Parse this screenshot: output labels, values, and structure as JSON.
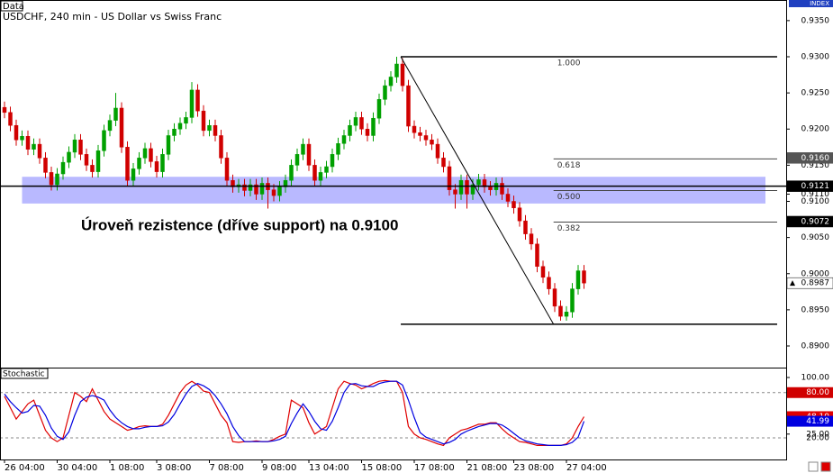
{
  "chart_data": [
    {
      "type": "candlestick",
      "tag": "Data",
      "title": "USDCHF, 240 min - US Dollar vs Swiss Franc",
      "index_label": "INDEX",
      "up_color": "#00a000",
      "down_color": "#d00000",
      "open": [
        0.923,
        0.9223,
        0.9205,
        0.9185,
        0.919,
        0.9172,
        0.9179,
        0.916,
        0.914,
        0.9123,
        0.9138,
        0.9154,
        0.9168,
        0.9185,
        0.9165,
        0.915,
        0.9141,
        0.917,
        0.9198,
        0.9212,
        0.9229,
        0.9175,
        0.9129,
        0.9145,
        0.916,
        0.9173,
        0.9155,
        0.9141,
        0.9165,
        0.9191,
        0.92,
        0.9208,
        0.9216,
        0.9254,
        0.9225,
        0.9198,
        0.9205,
        0.9191,
        0.916,
        0.9129,
        0.912,
        0.9123,
        0.9115,
        0.9123,
        0.911,
        0.9125,
        0.9116,
        0.9108,
        0.912,
        0.9129,
        0.915,
        0.9165,
        0.9179,
        0.915,
        0.9129,
        0.914,
        0.9148,
        0.9165,
        0.918,
        0.9191,
        0.9205,
        0.9216,
        0.92,
        0.9191,
        0.9215,
        0.9241,
        0.926,
        0.9272,
        0.929,
        0.926,
        0.9204,
        0.9195,
        0.9191,
        0.9185,
        0.9179,
        0.916,
        0.9148,
        0.9116,
        0.911,
        0.9129,
        0.911,
        0.9123,
        0.913,
        0.912,
        0.9116,
        0.9125,
        0.911,
        0.91,
        0.9091,
        0.9073,
        0.9055,
        0.9041,
        0.901,
        0.8995,
        0.8979,
        0.8955,
        0.8941,
        0.8947,
        0.8979,
        0.9004
      ],
      "high": [
        0.9238,
        0.9231,
        0.9213,
        0.9198,
        0.9198,
        0.9187,
        0.9187,
        0.9168,
        0.9148,
        0.9146,
        0.9162,
        0.9176,
        0.9193,
        0.9193,
        0.9173,
        0.9158,
        0.9178,
        0.9206,
        0.922,
        0.925,
        0.9237,
        0.9183,
        0.9153,
        0.9168,
        0.9181,
        0.9181,
        0.9163,
        0.9173,
        0.9199,
        0.9208,
        0.9216,
        0.9224,
        0.9265,
        0.9262,
        0.9233,
        0.9213,
        0.9213,
        0.9199,
        0.9168,
        0.9137,
        0.9131,
        0.9131,
        0.9131,
        0.9131,
        0.9133,
        0.9133,
        0.9124,
        0.9128,
        0.9137,
        0.9158,
        0.9173,
        0.9187,
        0.9187,
        0.9158,
        0.9148,
        0.9156,
        0.9173,
        0.9188,
        0.9199,
        0.9213,
        0.9224,
        0.9224,
        0.9208,
        0.9223,
        0.9249,
        0.9268,
        0.928,
        0.93,
        0.9298,
        0.9268,
        0.9212,
        0.9203,
        0.9199,
        0.9193,
        0.9187,
        0.9168,
        0.9156,
        0.9124,
        0.9137,
        0.9137,
        0.9131,
        0.9138,
        0.9138,
        0.9128,
        0.9133,
        0.9133,
        0.9118,
        0.9108,
        0.9099,
        0.9081,
        0.9063,
        0.9049,
        0.9018,
        0.9003,
        0.8987,
        0.8963,
        0.8955,
        0.8987,
        0.9012,
        0.9012
      ],
      "low": [
        0.9215,
        0.9197,
        0.9177,
        0.9177,
        0.9164,
        0.9164,
        0.9152,
        0.9132,
        0.9115,
        0.9115,
        0.913,
        0.9146,
        0.916,
        0.9157,
        0.9142,
        0.9133,
        0.9133,
        0.9162,
        0.919,
        0.9204,
        0.9167,
        0.9121,
        0.9121,
        0.9137,
        0.9152,
        0.9147,
        0.9133,
        0.9133,
        0.9157,
        0.9183,
        0.9192,
        0.92,
        0.9208,
        0.9217,
        0.919,
        0.919,
        0.9183,
        0.9152,
        0.9121,
        0.9112,
        0.9112,
        0.9107,
        0.9107,
        0.9102,
        0.9102,
        0.909,
        0.91,
        0.91,
        0.9112,
        0.9121,
        0.9142,
        0.9157,
        0.9142,
        0.9121,
        0.9121,
        0.9132,
        0.914,
        0.9157,
        0.9172,
        0.9183,
        0.9197,
        0.9192,
        0.9183,
        0.9183,
        0.9207,
        0.9233,
        0.9252,
        0.9264,
        0.9252,
        0.9196,
        0.9187,
        0.9183,
        0.9177,
        0.9171,
        0.9152,
        0.914,
        0.9108,
        0.909,
        0.9102,
        0.909,
        0.9102,
        0.9115,
        0.9112,
        0.9108,
        0.9108,
        0.9102,
        0.9092,
        0.9083,
        0.9065,
        0.9047,
        0.9033,
        0.9002,
        0.8987,
        0.8971,
        0.8947,
        0.8935,
        0.8935,
        0.8939,
        0.8971,
        0.8979
      ],
      "close": [
        0.9223,
        0.9205,
        0.9185,
        0.919,
        0.9172,
        0.9179,
        0.916,
        0.914,
        0.9123,
        0.9138,
        0.9154,
        0.9168,
        0.9185,
        0.9165,
        0.915,
        0.9141,
        0.917,
        0.9198,
        0.9212,
        0.9229,
        0.9175,
        0.9129,
        0.9145,
        0.916,
        0.9173,
        0.9155,
        0.9141,
        0.9165,
        0.9191,
        0.92,
        0.9208,
        0.9216,
        0.9254,
        0.9225,
        0.9198,
        0.9205,
        0.9191,
        0.916,
        0.9129,
        0.912,
        0.9123,
        0.9115,
        0.9123,
        0.911,
        0.9125,
        0.9116,
        0.9108,
        0.912,
        0.9129,
        0.915,
        0.9165,
        0.9179,
        0.915,
        0.9129,
        0.914,
        0.9148,
        0.9165,
        0.918,
        0.9191,
        0.9205,
        0.9216,
        0.92,
        0.9191,
        0.9215,
        0.9241,
        0.926,
        0.9272,
        0.929,
        0.926,
        0.9204,
        0.9195,
        0.9191,
        0.9185,
        0.9179,
        0.916,
        0.9148,
        0.9116,
        0.911,
        0.9129,
        0.911,
        0.9123,
        0.913,
        0.912,
        0.9116,
        0.9125,
        0.911,
        0.91,
        0.9091,
        0.9073,
        0.9055,
        0.9041,
        0.901,
        0.8995,
        0.8979,
        0.8955,
        0.8941,
        0.8947,
        0.8979,
        0.9004,
        0.8987
      ],
      "xlim": [
        -0.77,
        133.54
      ],
      "xticks": [
        {
          "value": 0,
          "label": "26 04:00"
        },
        {
          "value": 9,
          "label": "30 04:00"
        },
        {
          "value": 18,
          "label": "1 08:00"
        },
        {
          "value": 26,
          "label": "3 08:00"
        },
        {
          "value": 35,
          "label": "7 08:00"
        },
        {
          "value": 44,
          "label": "9 08:00"
        },
        {
          "value": 52,
          "label": "13 04:00"
        },
        {
          "value": 61,
          "label": "15 08:00"
        },
        {
          "value": 70,
          "label": "17 08:00"
        },
        {
          "value": 79,
          "label": "21 08:00"
        },
        {
          "value": 87,
          "label": "23 08:00"
        },
        {
          "value": 96,
          "label": "27 04:00"
        }
      ],
      "ylim": [
        0.88701,
        0.93785
      ],
      "yticks": [
        {
          "value": 0.935,
          "label": "0.9350"
        },
        {
          "value": 0.93,
          "label": "0.9300"
        },
        {
          "value": 0.925,
          "label": "0.9250"
        },
        {
          "value": 0.92,
          "label": "0.9200"
        },
        {
          "value": 0.915,
          "label": "0.9150"
        },
        {
          "value": 0.911,
          "label": "0.9110"
        },
        {
          "value": 0.91,
          "label": "0.9100"
        },
        {
          "value": 0.905,
          "label": "0.9050"
        },
        {
          "value": 0.9,
          "label": "0.9000"
        },
        {
          "value": 0.895,
          "label": "0.8950"
        },
        {
          "value": 0.89,
          "label": "0.8900"
        }
      ],
      "zone": {
        "from": 0.9097,
        "to": 0.9134,
        "x": [
          3,
          130
        ],
        "color": "#8080ff"
      },
      "hline": 0.9121,
      "annotation": "Úroveň rezistence (dříve support) na 0.9100",
      "trendline": {
        "x": [
          67.7,
          93.8
        ],
        "y": [
          0.93,
          0.893
        ]
      },
      "fib": {
        "high": 0.93,
        "low": 0.893,
        "x": [
          67.7,
          132
        ],
        "levels": [
          {
            "value": 1,
            "label": "1.000"
          },
          {
            "value": 0.618,
            "label": "0.618"
          },
          {
            "value": 0.5,
            "label": "0.500"
          },
          {
            "value": 0.382,
            "label": "0.382"
          }
        ]
      },
      "price_markers": [
        {
          "value": 0.916,
          "label": "0.9160",
          "color": "#555555"
        },
        {
          "value": 0.9121,
          "label": "0.9121",
          "color": "#000000"
        },
        {
          "value": 0.9072,
          "label": "0.9072",
          "color": "#000000"
        },
        {
          "value": 0.8987,
          "label": "0.8987",
          "color": "#ffffff"
        }
      ]
    },
    {
      "type": "line",
      "title": "Stochastic",
      "series": [
        {
          "color": "#e00000",
          "values": [
            75,
            60,
            45,
            55,
            65,
            70,
            50,
            30,
            20,
            15,
            20,
            50,
            80,
            75,
            68,
            85,
            70,
            55,
            45,
            40,
            35,
            30,
            32,
            35,
            36,
            35,
            35,
            38,
            50,
            65,
            80,
            90,
            95,
            90,
            82,
            80,
            65,
            50,
            40,
            15,
            14,
            15,
            15,
            16,
            15,
            15,
            18,
            22,
            25,
            70,
            65,
            60,
            40,
            25,
            30,
            35,
            60,
            85,
            95,
            92,
            90,
            85,
            88,
            92,
            95,
            96,
            95,
            95,
            80,
            35,
            25,
            20,
            18,
            15,
            12,
            10,
            20,
            25,
            30,
            32,
            35,
            38,
            38,
            40,
            40,
            32,
            25,
            20,
            15,
            14,
            12,
            10,
            10,
            10,
            10,
            10,
            12,
            20,
            35,
            48.1
          ]
        },
        {
          "color": "#0000e0",
          "values": [
            78,
            68,
            60,
            53,
            55,
            63,
            62,
            50,
            33,
            22,
            18,
            28,
            50,
            68,
            74,
            76,
            74,
            70,
            57,
            47,
            40,
            35,
            32,
            32,
            34,
            35,
            35,
            36,
            41,
            51,
            65,
            78,
            88,
            92,
            89,
            84,
            76,
            65,
            52,
            35,
            23,
            15,
            15,
            15,
            15,
            15,
            16,
            18,
            22,
            39,
            53,
            65,
            55,
            42,
            32,
            30,
            42,
            60,
            80,
            91,
            92,
            89,
            88,
            88,
            92,
            94,
            95,
            95,
            90,
            70,
            47,
            27,
            21,
            18,
            15,
            12,
            14,
            18,
            25,
            29,
            32,
            35,
            37,
            39,
            39,
            37,
            32,
            26,
            20,
            16,
            14,
            12,
            11,
            10,
            10,
            10,
            11,
            14,
            21,
            41.99
          ]
        }
      ],
      "ylim": [
        -8.66,
        113.13
      ],
      "yticks": [
        {
          "value": 100,
          "label": "100.00"
        },
        {
          "value": 25,
          "label": "25.00"
        }
      ],
      "levels": [
        {
          "value": 80,
          "label": "80.00",
          "color": "#d00000"
        },
        {
          "value": 20,
          "label": "20.00",
          "color": "#ffffff"
        }
      ],
      "markers": [
        {
          "value": 48.1,
          "label": "48.10",
          "color": "#e00000"
        },
        {
          "value": 41.99,
          "label": "41.99",
          "color": "#0000e0"
        }
      ]
    }
  ]
}
